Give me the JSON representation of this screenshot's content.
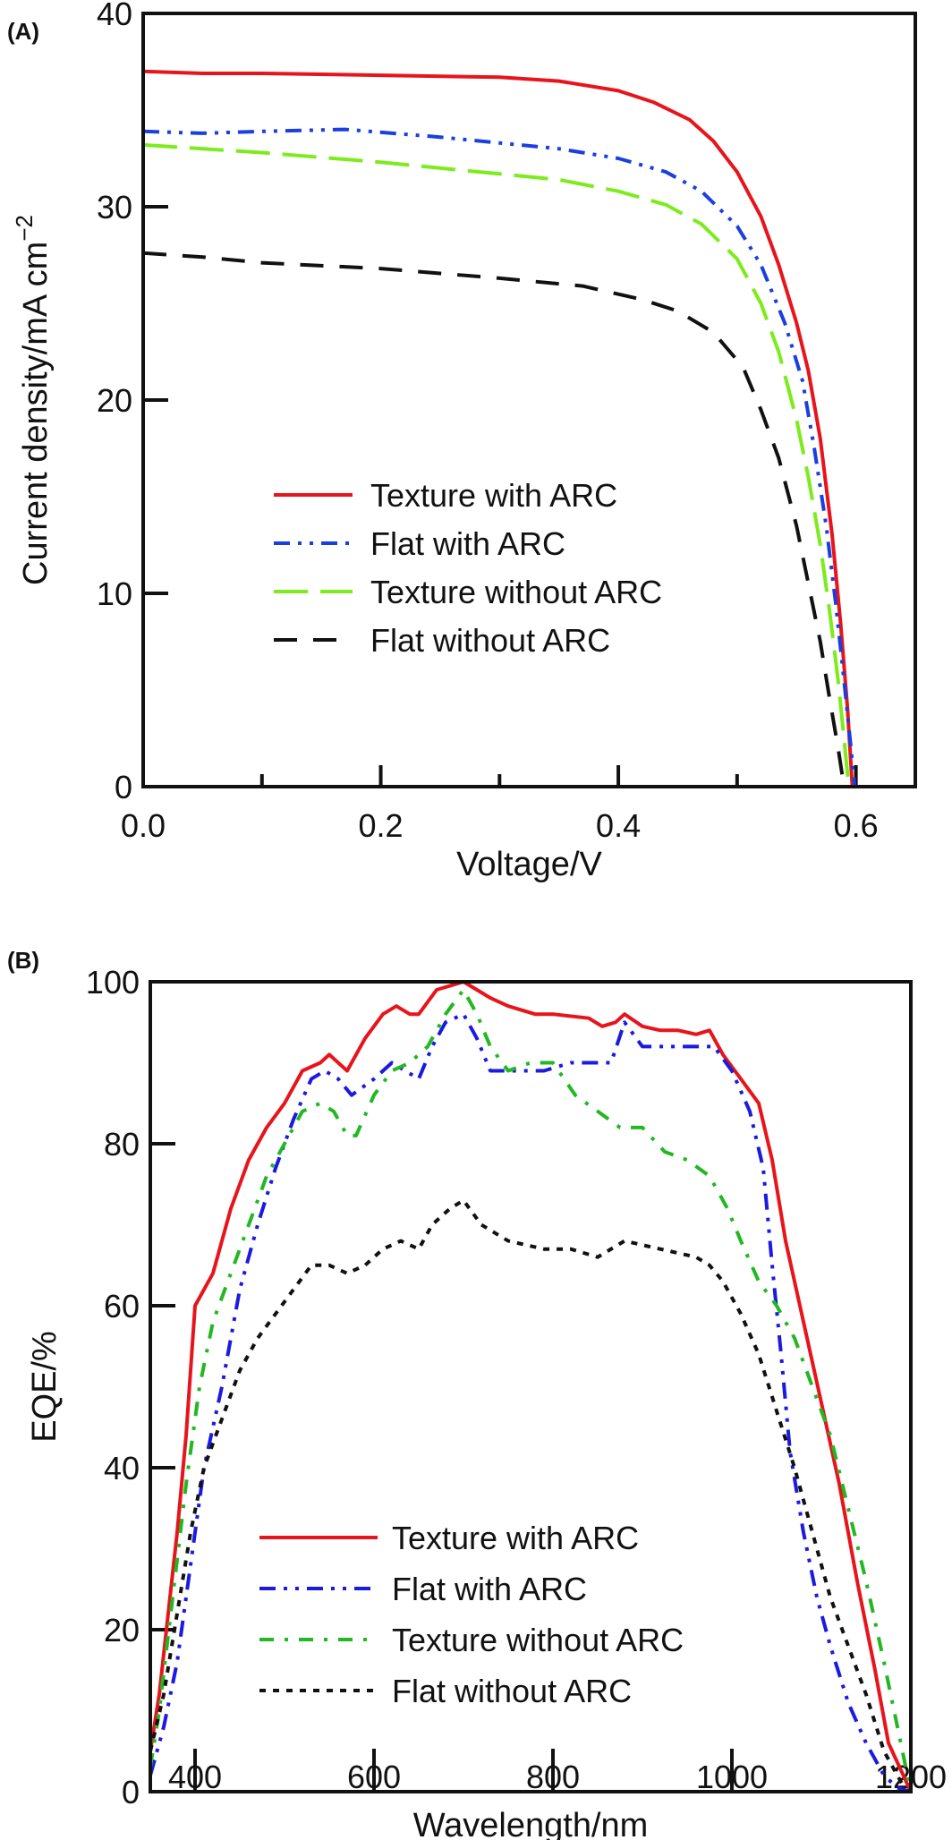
{
  "chart_data": [
    {
      "type": "line",
      "panel_label": "(A)",
      "title": "",
      "xlabel": "Voltage/V",
      "ylabel": "Current density/mA cm",
      "ylabel_superscript": "−2",
      "xlim": [
        0.0,
        0.65
      ],
      "ylim": [
        0,
        40
      ],
      "xticks_major": [
        0.0,
        0.2,
        0.4,
        0.6
      ],
      "xtick_labels": [
        "0.0",
        "0.2",
        "0.4",
        "0.6"
      ],
      "xticks_minor": [
        0.1,
        0.3,
        0.5
      ],
      "yticks": [
        0,
        10,
        20,
        30,
        40
      ],
      "ytick_labels": [
        "0",
        "10",
        "20",
        "30",
        "40"
      ],
      "grid": false,
      "legend_position": "center-left",
      "series": [
        {
          "name": "Texture with ARC",
          "color": "#e8141c",
          "style": "solid",
          "x": [
            0.0,
            0.05,
            0.1,
            0.2,
            0.3,
            0.35,
            0.4,
            0.43,
            0.46,
            0.48,
            0.5,
            0.52,
            0.535,
            0.55,
            0.56,
            0.57,
            0.58,
            0.587,
            0.593,
            0.597
          ],
          "y": [
            37.0,
            36.9,
            36.9,
            36.8,
            36.7,
            36.5,
            36.0,
            35.4,
            34.5,
            33.4,
            31.8,
            29.5,
            27.0,
            24.0,
            21.5,
            18.0,
            13.0,
            8.5,
            4.0,
            0.0
          ]
        },
        {
          "name": "Flat with ARC",
          "color": "#1a3fe0",
          "style": "dash-dot-dot",
          "x": [
            0.0,
            0.05,
            0.1,
            0.17,
            0.25,
            0.3,
            0.35,
            0.4,
            0.44,
            0.47,
            0.5,
            0.52,
            0.54,
            0.555,
            0.565,
            0.575,
            0.583,
            0.59,
            0.595,
            0.599
          ],
          "y": [
            33.9,
            33.8,
            33.9,
            34.0,
            33.6,
            33.3,
            33.0,
            32.5,
            31.8,
            30.8,
            29.0,
            27.0,
            24.0,
            21.0,
            17.5,
            13.5,
            9.5,
            5.5,
            2.5,
            0.0
          ]
        },
        {
          "name": "Texture without ARC",
          "color": "#7cec1c",
          "style": "long-dash",
          "x": [
            0.0,
            0.05,
            0.1,
            0.2,
            0.3,
            0.35,
            0.4,
            0.44,
            0.47,
            0.5,
            0.52,
            0.535,
            0.55,
            0.56,
            0.57,
            0.578,
            0.585,
            0.59,
            0.594
          ],
          "y": [
            33.2,
            33.0,
            32.8,
            32.3,
            31.7,
            31.4,
            30.8,
            30.1,
            29.1,
            27.3,
            25.0,
            22.5,
            19.0,
            16.0,
            12.5,
            9.0,
            5.5,
            2.5,
            0.0
          ]
        },
        {
          "name": "Flat without ARC",
          "color": "#111111",
          "style": "dash",
          "x": [
            0.0,
            0.05,
            0.1,
            0.2,
            0.3,
            0.37,
            0.42,
            0.45,
            0.48,
            0.505,
            0.52,
            0.535,
            0.55,
            0.56,
            0.57,
            0.578,
            0.585,
            0.59
          ],
          "y": [
            27.6,
            27.4,
            27.1,
            26.8,
            26.3,
            25.9,
            25.2,
            24.6,
            23.5,
            21.7,
            19.5,
            17.0,
            13.5,
            10.5,
            7.5,
            4.5,
            2.0,
            0.0
          ]
        }
      ]
    },
    {
      "type": "line",
      "panel_label": "(B)",
      "title": "",
      "xlabel": "Wavelength/nm",
      "ylabel": "EQE/%",
      "xlim": [
        350,
        1200
      ],
      "ylim": [
        0,
        100
      ],
      "xticks_major": [
        400,
        600,
        800,
        1000,
        1200
      ],
      "xtick_labels": [
        "400",
        "600",
        "800",
        "1000",
        "1200"
      ],
      "yticks": [
        0,
        20,
        40,
        60,
        80,
        100
      ],
      "ytick_labels": [
        "0",
        "20",
        "40",
        "60",
        "80",
        "100"
      ],
      "grid": false,
      "legend_position": "bottom-center",
      "series": [
        {
          "name": "Texture with ARC",
          "color": "#e8141c",
          "style": "solid",
          "x": [
            350,
            360,
            370,
            380,
            390,
            400,
            420,
            440,
            460,
            480,
            500,
            520,
            540,
            550,
            570,
            590,
            610,
            625,
            640,
            650,
            670,
            685,
            700,
            715,
            730,
            750,
            780,
            800,
            840,
            855,
            870,
            880,
            900,
            920,
            940,
            960,
            975,
            990,
            1010,
            1030,
            1045,
            1060,
            1080,
            1100,
            1120,
            1140,
            1160,
            1175,
            1200
          ],
          "y": [
            5,
            12,
            22,
            32,
            44,
            60,
            64,
            72,
            78,
            82,
            85,
            89,
            90,
            91,
            89,
            93,
            96,
            97,
            96,
            96,
            99,
            99.5,
            100,
            99,
            98,
            97,
            96,
            96,
            95.5,
            94.5,
            95,
            96,
            94.5,
            94,
            94,
            93.5,
            94,
            91,
            88,
            85,
            78,
            68,
            58,
            48,
            38,
            26,
            15,
            6,
            0
          ]
        },
        {
          "name": "Flat with ARC",
          "color": "#1a1ae0",
          "style": "dash-dot-dot",
          "x": [
            350,
            365,
            380,
            395,
            410,
            430,
            450,
            470,
            490,
            510,
            530,
            545,
            560,
            575,
            600,
            620,
            635,
            650,
            665,
            680,
            700,
            715,
            730,
            760,
            790,
            820,
            850,
            865,
            880,
            900,
            940,
            960,
            980,
            1000,
            1020,
            1035,
            1045,
            1055,
            1065,
            1080,
            1095,
            1110,
            1130,
            1150,
            1170,
            1185,
            1200
          ],
          "y": [
            2,
            8,
            16,
            28,
            40,
            50,
            62,
            70,
            77,
            83,
            88,
            89,
            88,
            86,
            88,
            90,
            89,
            88,
            92,
            95,
            96,
            93,
            89,
            89,
            89,
            90,
            90,
            90,
            95,
            92,
            92,
            92,
            92,
            89,
            84,
            77,
            65,
            54,
            42,
            32,
            24,
            18,
            11,
            6,
            2,
            0.5,
            0
          ]
        },
        {
          "name": "Texture without ARC",
          "color": "#22b822",
          "style": "dash-dot",
          "x": [
            350,
            360,
            375,
            390,
            405,
            420,
            440,
            460,
            480,
            500,
            520,
            540,
            555,
            570,
            580,
            600,
            620,
            640,
            660,
            680,
            700,
            715,
            730,
            750,
            775,
            800,
            825,
            850,
            875,
            900,
            925,
            950,
            975,
            995,
            1010,
            1030,
            1050,
            1070,
            1090,
            1110,
            1130,
            1150,
            1170,
            1185,
            1200
          ],
          "y": [
            3,
            10,
            24,
            38,
            50,
            58,
            64,
            70,
            76,
            80,
            84,
            85,
            84,
            81,
            81,
            86,
            89,
            90,
            92,
            96,
            99,
            96,
            92,
            89,
            90,
            90,
            86,
            84,
            82,
            82,
            79,
            78,
            76,
            72,
            68,
            63,
            60,
            56,
            50,
            44,
            35,
            26,
            16,
            8,
            0
          ]
        },
        {
          "name": "Flat without ARC",
          "color": "#111111",
          "style": "dot",
          "x": [
            350,
            365,
            380,
            395,
            410,
            430,
            450,
            470,
            490,
            510,
            530,
            550,
            570,
            590,
            610,
            630,
            650,
            665,
            685,
            700,
            720,
            750,
            790,
            820,
            850,
            880,
            920,
            960,
            975,
            990,
            1010,
            1030,
            1050,
            1070,
            1090,
            1110,
            1130,
            1150,
            1170,
            1190
          ],
          "y": [
            5,
            12,
            22,
            32,
            40,
            46,
            52,
            56,
            59,
            62,
            65,
            65,
            64,
            65,
            67,
            68,
            67,
            70,
            72,
            73,
            70,
            68,
            67,
            67,
            66,
            68,
            67,
            66,
            65,
            63,
            59,
            54,
            47,
            40,
            32,
            24,
            18,
            12,
            5,
            1
          ]
        }
      ]
    }
  ]
}
